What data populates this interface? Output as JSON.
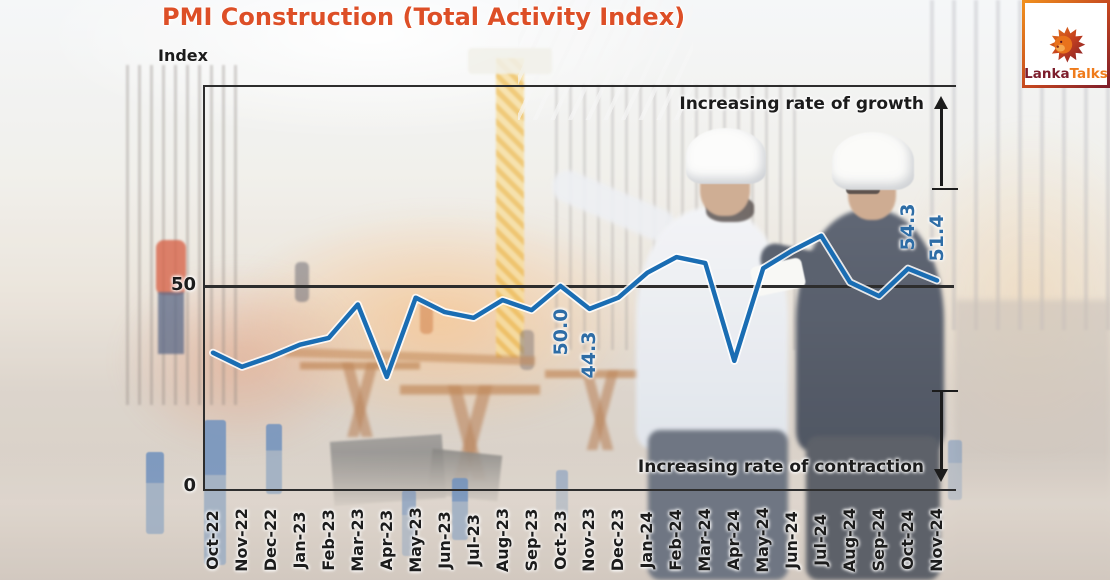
{
  "title": "PMI Construction (Total Activity Index)",
  "logo": {
    "text_primary": "Lanka",
    "text_secondary": "Talks"
  },
  "annotations": {
    "growth": "Increasing rate of growth",
    "contraction": "Increasing rate of contraction"
  },
  "colors": {
    "title": "#dd4f27",
    "line": "#1a6db3",
    "point_label": "#2e6da6",
    "axis_text": "#1c1c1c",
    "axis_line": "#2d2d2d",
    "logo_maroon": "#7c1d2b",
    "logo_orange": "#ef7b1b"
  },
  "chart_data": {
    "type": "line",
    "title": "PMI Construction (Total Activity Index)",
    "ylabel": "Index",
    "xlabel": "",
    "categories": [
      "Oct-22",
      "Nov-22",
      "Dec-22",
      "Jan-23",
      "Feb-23",
      "Mar-23",
      "Apr-23",
      "May-23",
      "Jun-23",
      "Jul-23",
      "Aug-23",
      "Sep-23",
      "Oct-23",
      "Nov-23",
      "Dec-23",
      "Jan-24",
      "Feb-24",
      "Mar-24",
      "Apr-24",
      "May-24",
      "Jun-24",
      "Jul-24",
      "Aug-24",
      "Sep-24",
      "Oct-24",
      "Nov-24"
    ],
    "values": [
      33.4,
      29.9,
      32.4,
      35.4,
      37.1,
      45.4,
      27.4,
      47.1,
      43.5,
      42.1,
      46.5,
      44.0,
      50.0,
      44.3,
      47.1,
      53.3,
      57.2,
      55.7,
      31.4,
      54.4,
      58.8,
      62.5,
      50.9,
      47.5,
      54.3,
      51.4
    ],
    "yticks": [
      50,
      0
    ],
    "ylim": [
      0,
      100
    ],
    "grid": "single horizontal reference line at 50",
    "legend": "none",
    "point_labels": [
      {
        "index": 12,
        "category": "Oct-23",
        "text": "50.0",
        "placement": "below"
      },
      {
        "index": 13,
        "category": "Nov-23",
        "text": "44.3",
        "placement": "below"
      },
      {
        "index": 24,
        "category": "Oct-24",
        "text": "54.3",
        "placement": "above"
      },
      {
        "index": 25,
        "category": "Nov-24",
        "text": "51.4",
        "placement": "above"
      }
    ]
  }
}
